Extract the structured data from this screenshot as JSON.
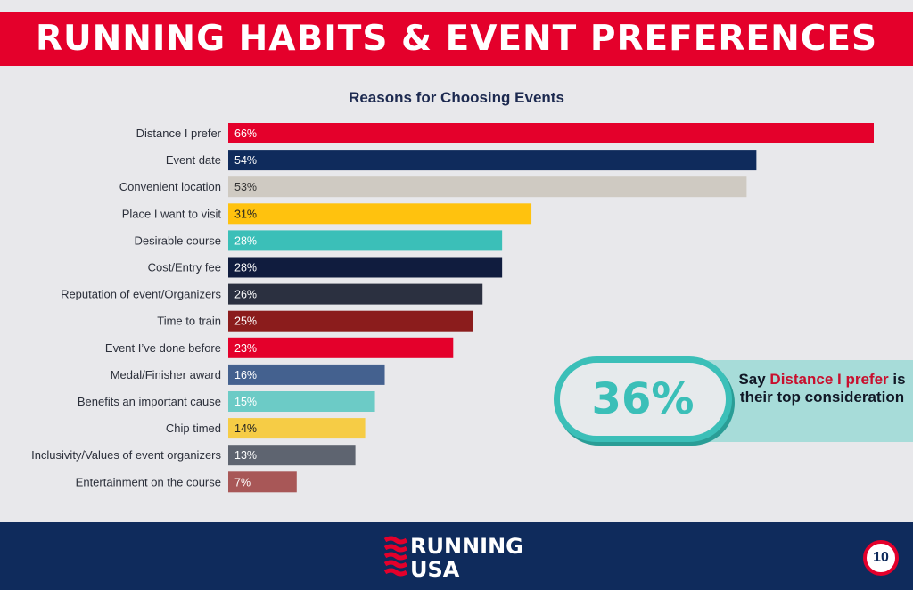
{
  "header": {
    "title": "RUNNING HABITS & EVENT PREFERENCES"
  },
  "chart_data": {
    "type": "bar",
    "orientation": "horizontal",
    "title": "Reasons for Choosing Events",
    "categories": [
      "Distance I prefer",
      "Event date",
      "Convenient location",
      "Place I want to visit",
      "Desirable course",
      "Cost/Entry fee",
      "Reputation of event/Organizers",
      "Time to train",
      "Event I’ve done before",
      "Medal/Finisher award",
      "Benefits an important cause",
      "Chip timed",
      "Inclusivity/Values of event organizers",
      "Entertainment on the course"
    ],
    "values": [
      66,
      54,
      53,
      31,
      28,
      28,
      26,
      25,
      23,
      16,
      15,
      14,
      13,
      7
    ],
    "value_labels": [
      "66%",
      "54%",
      "53%",
      "31%",
      "28%",
      "28%",
      "26%",
      "25%",
      "23%",
      "16%",
      "15%",
      "14%",
      "13%",
      "7%"
    ],
    "colors": [
      "#e4002b",
      "#0f2b5c",
      "#cfcac2",
      "#ffc20e",
      "#3bbfb8",
      "#101c3e",
      "#2b3040",
      "#8b1c1c",
      "#e4002b",
      "#44618f",
      "#6ccbc6",
      "#f6cc45",
      "#5e6470",
      "#a85757"
    ],
    "label_colors": [
      "#ffffff",
      "#ffffff",
      "#333333",
      "#222222",
      "#ffffff",
      "#ffffff",
      "#ffffff",
      "#ffffff",
      "#ffffff",
      "#ffffff",
      "#ffffff",
      "#222222",
      "#ffffff",
      "#ffffff"
    ],
    "xlim": [
      0,
      66
    ]
  },
  "callout": {
    "percent": "36%",
    "text_before": "Say ",
    "highlight": "Distance I prefer",
    "text_after": " is their top consideration"
  },
  "footer": {
    "logo_line1": "RUNNING",
    "logo_line2": "USA",
    "page_number": "10"
  }
}
